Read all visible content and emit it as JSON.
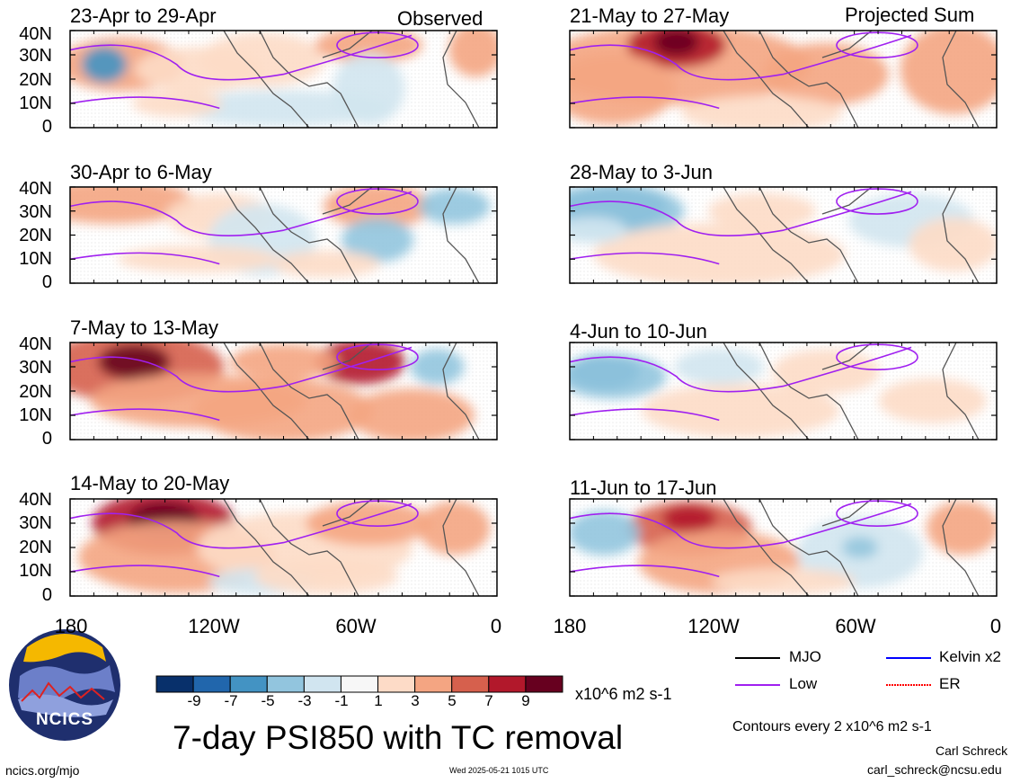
{
  "column_labels": {
    "left": "Observed",
    "right": "Projected Sum"
  },
  "panels": [
    {
      "period": "23-Apr to 29-Apr"
    },
    {
      "period": "30-Apr to 6-May"
    },
    {
      "period": "7-May to 13-May"
    },
    {
      "period": "14-May to 20-May"
    },
    {
      "period": "21-May to 27-May"
    },
    {
      "period": "28-May to 3-Jun"
    },
    {
      "period": "4-Jun to 10-Jun"
    },
    {
      "period": "11-Jun to 17-Jun"
    }
  ],
  "lat_labels": [
    "40N",
    "30N",
    "20N",
    "10N",
    "0"
  ],
  "lon_labels": [
    "180",
    "120W",
    "60W",
    "0"
  ],
  "colorbar": {
    "ticks": [
      "-9",
      "-7",
      "-5",
      "-3",
      "-1",
      "1",
      "3",
      "5",
      "7",
      "9"
    ],
    "units": "x10^6 m2 s-1",
    "colors": [
      "#08306b",
      "#2166ac",
      "#4393c3",
      "#92c5de",
      "#d1e5f0",
      "#f7f7f7",
      "#fddbc7",
      "#f4a582",
      "#d6604d",
      "#b2182b",
      "#67001f"
    ]
  },
  "legend": [
    {
      "label": "MJO",
      "color": "#000000",
      "style": "solid"
    },
    {
      "label": "Kelvin x2",
      "color": "#0000ff",
      "style": "solid"
    },
    {
      "label": "Low",
      "color": "#a020f0",
      "style": "solid"
    },
    {
      "label": "ER",
      "color": "#ff0000",
      "style": "dotted"
    }
  ],
  "title": "7-day PSI850 with TC removal",
  "contour_note": "Contours every 2 x10^6 m2 s-1",
  "author": "Carl Schreck",
  "email": "carl_schreck@ncsu.edu",
  "website": "ncics.org/mjo",
  "timestamp": "Wed 2025-05-21 1015 UTC",
  "logo_text": "NCICS"
}
